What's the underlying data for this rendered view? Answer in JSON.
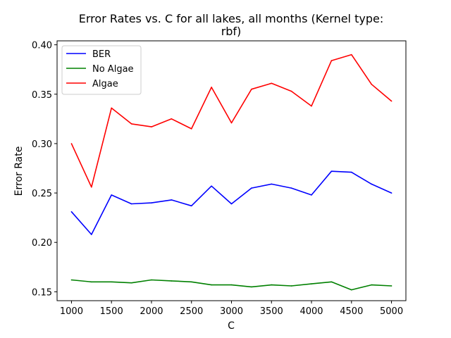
{
  "chart_data": {
    "type": "line",
    "title_line1": "Error Rates vs. C for all lakes, all months (Kernel type:",
    "title_line2": "rbf)",
    "xlabel": "C",
    "ylabel": "Error Rate",
    "xlim": [
      820,
      5180
    ],
    "ylim": [
      0.141,
      0.404
    ],
    "xticks": [
      1000,
      1500,
      2000,
      2500,
      3000,
      3500,
      4000,
      4500,
      5000
    ],
    "xtick_labels": [
      "1000",
      "1500",
      "2000",
      "2500",
      "3000",
      "3500",
      "4000",
      "4500",
      "5000"
    ],
    "yticks": [
      0.15,
      0.2,
      0.25,
      0.3,
      0.35,
      0.4
    ],
    "ytick_labels": [
      "0.15",
      "0.20",
      "0.25",
      "0.30",
      "0.35",
      "0.40"
    ],
    "grid": false,
    "legend_position": "top-left",
    "x": [
      1000,
      1250,
      1500,
      1750,
      2000,
      2250,
      2500,
      2750,
      3000,
      3250,
      3500,
      3750,
      4000,
      4250,
      4500,
      4750,
      5000
    ],
    "series": [
      {
        "name": "BER",
        "color": "#0000ff",
        "values": [
          0.231,
          0.208,
          0.248,
          0.239,
          0.24,
          0.243,
          0.237,
          0.257,
          0.239,
          0.255,
          0.259,
          0.255,
          0.248,
          0.272,
          0.271,
          0.259,
          0.25
        ]
      },
      {
        "name": "No Algae",
        "color": "#008000",
        "values": [
          0.162,
          0.16,
          0.16,
          0.159,
          0.162,
          0.161,
          0.16,
          0.157,
          0.157,
          0.155,
          0.157,
          0.156,
          0.158,
          0.16,
          0.152,
          0.157,
          0.156
        ]
      },
      {
        "name": "Algae",
        "color": "#ff0000",
        "values": [
          0.3,
          0.256,
          0.336,
          0.32,
          0.317,
          0.325,
          0.315,
          0.357,
          0.321,
          0.355,
          0.361,
          0.353,
          0.338,
          0.384,
          0.39,
          0.36,
          0.343
        ]
      }
    ]
  }
}
